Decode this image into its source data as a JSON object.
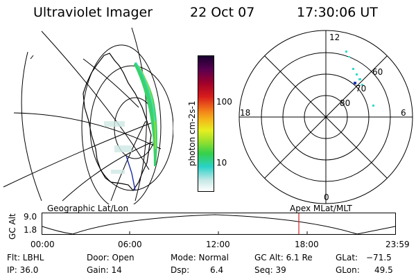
{
  "header": {
    "instrument": "Ultraviolet Imager",
    "date": "22 Oct 07",
    "time": "17:30:06 UT"
  },
  "colorbar": {
    "label": "photon cm-2s-1",
    "ticks": [
      "100",
      "10"
    ]
  },
  "polar_plot": {
    "mlt_labels": {
      "top": "12",
      "left": "18",
      "right": "6",
      "bottom": "0"
    },
    "lat_labels": [
      "60",
      "70",
      "80"
    ]
  },
  "timeline": {
    "left_label": "Geographic Lat/Lon",
    "right_label": "Apex MLat/MLT",
    "y_label": "GC Alt",
    "y_ticks": [
      "9.0",
      "1.8"
    ],
    "x_ticks": [
      "00:00",
      "06:00",
      "12:00",
      "18:00",
      "23:59"
    ],
    "marker_color": "#d42020"
  },
  "info": {
    "row1": {
      "flt": "Flt: LBHL",
      "door": "Door: Open",
      "mode": "Mode: Normal",
      "gcalt": "GC Alt: 6.1 Re",
      "glat_label": "GLat:",
      "glat_value": "−71.5"
    },
    "row2": {
      "ip": "IP: 36.0",
      "gain": "Gain: 14",
      "dsp_label": "Dsp:",
      "dsp_value": "6.4",
      "seq": "Seq: 39",
      "glon_label": "GLon:",
      "glon_value": "49.5"
    }
  }
}
